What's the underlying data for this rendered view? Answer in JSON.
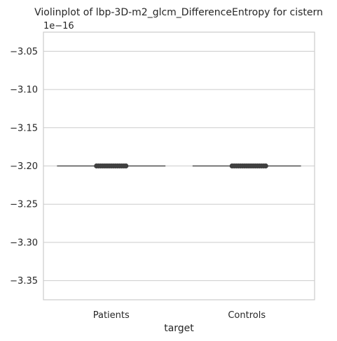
{
  "chart_data": {
    "type": "violin",
    "title": "Violinplot of lbp-3D-m2_glcm_DifferenceEntropy for cistern",
    "xlabel": "target",
    "ylabel": "",
    "offset_label": "1e−16",
    "categories": [
      "Patients",
      "Controls"
    ],
    "yticks": [
      -3.05,
      -3.1,
      -3.15,
      -3.2,
      -3.25,
      -3.3,
      -3.35
    ],
    "ytick_labels": [
      "−3.05",
      "−3.10",
      "−3.15",
      "−3.20",
      "−3.25",
      "−3.30",
      "−3.35"
    ],
    "ylim": [
      -3.375,
      -3.025
    ],
    "grid": true,
    "series": [
      {
        "category": "Patients",
        "value": -3.2
      },
      {
        "category": "Controls",
        "value": -3.2
      }
    ]
  }
}
